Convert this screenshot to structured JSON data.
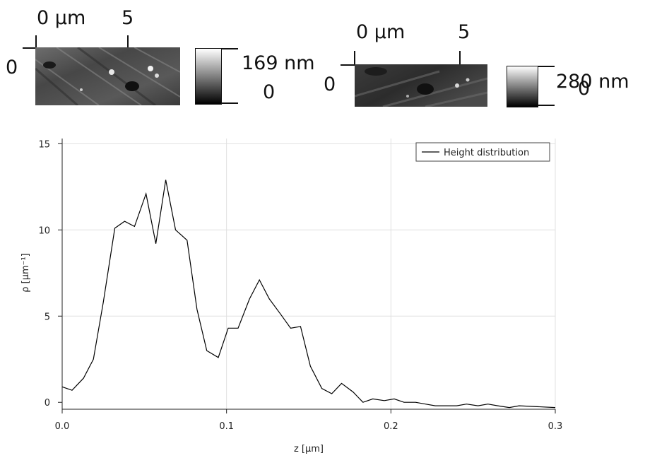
{
  "images": [
    {
      "x_tick_labels": [
        "0 µm",
        "5"
      ],
      "y_tick_label": "0",
      "colorbar_max": "169 nm",
      "colorbar_min": "0"
    },
    {
      "x_tick_labels": [
        "0 µm",
        "5"
      ],
      "y_tick_label": "0",
      "colorbar_max": "280 nm",
      "colorbar_min": "0"
    }
  ],
  "chart_data": {
    "type": "line",
    "xlabel": "z [µm]",
    "ylabel": "ρ [µm⁻¹]",
    "xlim": [
      0,
      0.3
    ],
    "ylim": [
      -0.4,
      15.3
    ],
    "xticks": [
      "0.0",
      "0.1",
      "0.2",
      "0.3"
    ],
    "yticks": [
      "0",
      "5",
      "10",
      "15"
    ],
    "grid": true,
    "legend_position": "top-right",
    "series": [
      {
        "name": "Height distribution",
        "color": "#000000",
        "x": [
          0.0,
          0.006,
          0.013,
          0.019,
          0.025,
          0.032,
          0.038,
          0.044,
          0.051,
          0.057,
          0.063,
          0.069,
          0.076,
          0.082,
          0.088,
          0.095,
          0.101,
          0.107,
          0.114,
          0.12,
          0.126,
          0.133,
          0.139,
          0.145,
          0.151,
          0.158,
          0.164,
          0.17,
          0.177,
          0.183,
          0.189,
          0.196,
          0.202,
          0.208,
          0.215,
          0.221,
          0.227,
          0.234,
          0.24,
          0.246,
          0.253,
          0.259,
          0.265,
          0.272,
          0.278,
          0.3
        ],
        "values": [
          0.9,
          0.7,
          1.4,
          2.5,
          5.8,
          10.1,
          10.5,
          10.2,
          12.1,
          9.2,
          12.9,
          10.0,
          9.4,
          5.4,
          3.0,
          2.6,
          4.3,
          4.3,
          6.0,
          7.1,
          6.0,
          5.1,
          4.3,
          4.4,
          2.1,
          0.8,
          0.5,
          1.1,
          0.6,
          0.0,
          0.2,
          0.1,
          0.2,
          0.0,
          0.0,
          -0.1,
          -0.2,
          -0.2,
          -0.2,
          -0.1,
          -0.2,
          -0.1,
          -0.2,
          -0.3,
          -0.2,
          -0.3
        ]
      }
    ]
  }
}
